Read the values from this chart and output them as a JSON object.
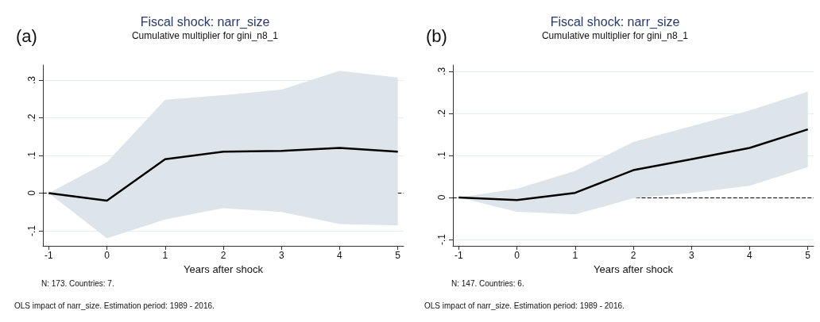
{
  "chart_data": [
    {
      "type": "line",
      "title": "Fiscal shock: narr_size",
      "subtitle": "Cumulative multiplier for gini_n8_1",
      "xlabel": "Years after shock",
      "annotations": [
        "(a)",
        "N: 173. Countries: 7.",
        "OLS impact of narr_size. Estimation period: 1989 - 2016."
      ],
      "x": [
        -1,
        0,
        1,
        2,
        3,
        4,
        5
      ],
      "series": [
        {
          "color": "#000000",
          "values": [
            0,
            -0.02,
            0.09,
            0.11,
            0.112,
            0.12,
            0.11
          ],
          "lower": [
            0,
            -0.12,
            -0.07,
            -0.04,
            -0.05,
            -0.082,
            -0.086
          ],
          "upper": [
            0,
            0.082,
            0.248,
            0.26,
            0.275,
            0.325,
            0.307
          ]
        }
      ],
      "xlim": [
        -1.1,
        5.1
      ],
      "xticks": [
        -1,
        0,
        1,
        2,
        3,
        4,
        5
      ],
      "ylim": [
        -0.14,
        0.34
      ],
      "yticks": [
        {
          "value": -0.1,
          "label": "-.1"
        },
        0,
        {
          "value": 0.1,
          "label": ".1"
        },
        {
          "value": 0.2,
          "label": ".2"
        },
        {
          "value": 0.3,
          "label": ".3"
        }
      ],
      "ref_lines": [
        {
          "axis": "y",
          "value": 0,
          "line_style": "dashed",
          "color": "#000000"
        }
      ],
      "grid": "y",
      "marker": "none",
      "line_style": "solid"
    },
    {
      "type": "line",
      "title": "Fiscal shock: narr_size",
      "subtitle": "Cumulative multiplier for gini_n8_1",
      "xlabel": "Years after shock",
      "annotations": [
        "(b)",
        "N: 147. Countries: 6.",
        "OLS impact of narr_size. Estimation period: 1989 - 2016."
      ],
      "x": [
        -1,
        0,
        1,
        2,
        3,
        4,
        5
      ],
      "series": [
        {
          "color": "#000000",
          "values": [
            0,
            -0.006,
            0.011,
            0.065,
            0.091,
            0.118,
            0.162
          ],
          "lower": [
            0,
            -0.034,
            -0.04,
            -0.002,
            0.011,
            0.028,
            0.072
          ],
          "upper": [
            0,
            0.021,
            0.063,
            0.132,
            0.17,
            0.207,
            0.252
          ]
        }
      ],
      "xlim": [
        -1.1,
        5.1
      ],
      "xticks": [
        -1,
        0,
        1,
        2,
        3,
        4,
        5
      ],
      "ylim": [
        -0.115,
        0.315
      ],
      "yticks": [
        {
          "value": -0.1,
          "label": "-.1"
        },
        0,
        {
          "value": 0.1,
          "label": ".1"
        },
        {
          "value": 0.2,
          "label": ".2"
        },
        {
          "value": 0.3,
          "label": ".3"
        }
      ],
      "ref_lines": [
        {
          "axis": "y",
          "value": 0,
          "line_style": "dashed",
          "color": "#000000"
        }
      ],
      "grid": "y",
      "marker": "none",
      "line_style": "solid"
    }
  ]
}
